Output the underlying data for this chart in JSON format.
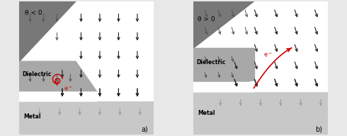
{
  "fig_width": 4.9,
  "fig_height": 1.93,
  "dpi": 100,
  "panel_a": {
    "dark_color": "#787878",
    "dielectric_color": "#a8a8a8",
    "metal_color": "#c8c8c8",
    "white_color": "#ffffff",
    "theta_label": "θ < 0",
    "dielectric_label": "Dielectric",
    "metal_label": "Metal",
    "label": "a)"
  },
  "panel_b": {
    "dark_color": "#787878",
    "dielectric_color": "#a8a8a8",
    "metal_color": "#c8c8c8",
    "white_color": "#ffffff",
    "theta_label": "θ > 0",
    "dielectric_label": "Dielectric",
    "metal_label": "Metal",
    "label": "b)"
  },
  "arrow_color": "#1a1a1a",
  "dark_arrow_color": "#555555",
  "metal_arrow_color": "#999999",
  "red_color": "#cc0000",
  "fig_bg": "#e8e8e8"
}
